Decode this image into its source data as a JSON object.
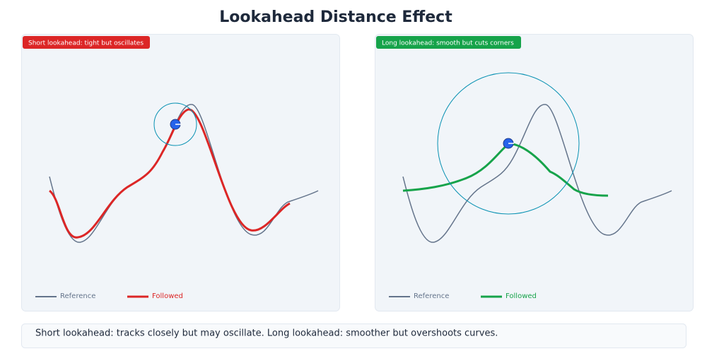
{
  "title": "Lookahead Distance Effect",
  "panels": [
    {
      "badge": "Short lookahead: tight but oscillates",
      "legend": {
        "reference": "Reference",
        "followed": "Followed"
      }
    },
    {
      "badge": "Long lookahead: smooth but cuts corners",
      "legend": {
        "reference": "Reference",
        "followed": "Followed"
      }
    }
  ],
  "caption": "Short lookahead: tracks closely but may oscillate. Long lookahead: smoother but overshoots curves."
}
